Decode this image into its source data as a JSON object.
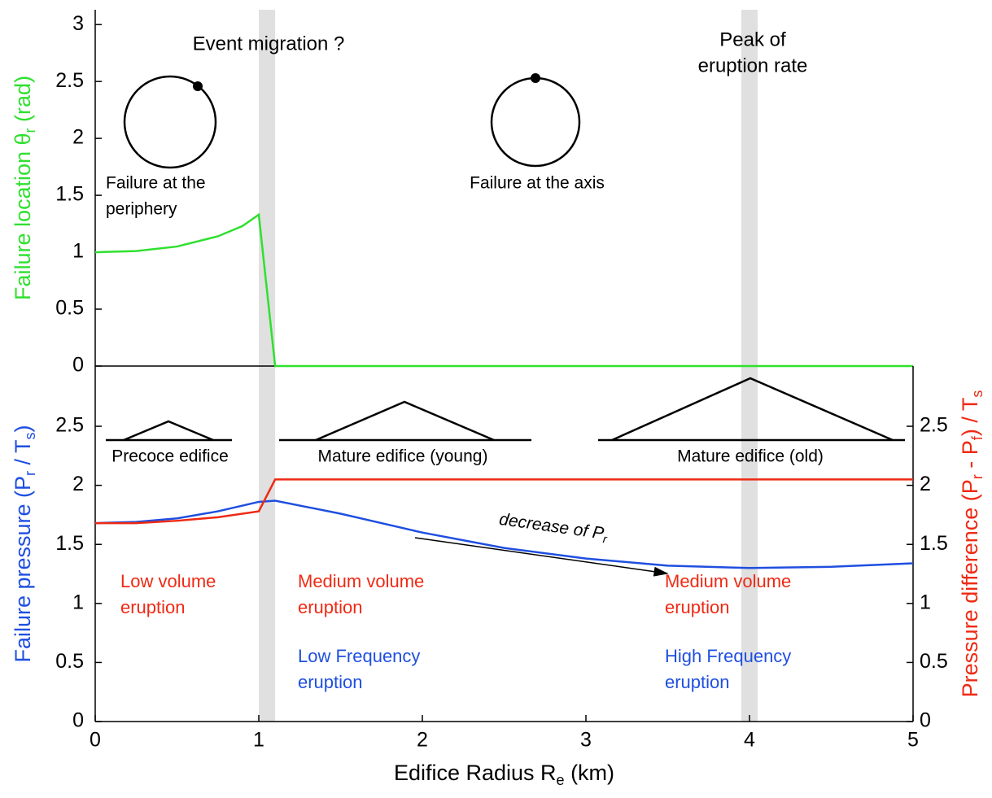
{
  "chart_data": [
    {
      "type": "line",
      "ylabel": [
        "Failure location θ",
        "r",
        " (rad)"
      ],
      "ylabel_color": "#2fe02f",
      "x": [
        0,
        0.25,
        0.5,
        0.75,
        0.9,
        1.0,
        1.1,
        5
      ],
      "series": [
        {
          "name": "Failure location",
          "color": "#2fe02f",
          "values": [
            1.0,
            1.01,
            1.05,
            1.14,
            1.23,
            1.33,
            0,
            0
          ]
        }
      ],
      "xlim": [
        0,
        5
      ],
      "ylim": [
        0,
        3.13
      ],
      "yticks": [
        0,
        0.5,
        1,
        1.5,
        2,
        2.5,
        3
      ],
      "highlight_bands": [
        [
          1.0,
          1.1
        ],
        [
          3.95,
          4.05
        ]
      ],
      "annotations": [
        {
          "lines": [
            "Event migration ?"
          ],
          "color": "#000000"
        },
        {
          "lines": [
            "Peak of",
            "eruption rate"
          ],
          "color": "#000000"
        },
        {
          "lines": [
            "Failure at the",
            "periphery"
          ],
          "color": "#000000"
        },
        {
          "lines": [
            "Failure at the axis"
          ],
          "color": "#000000"
        }
      ]
    },
    {
      "type": "line",
      "xlabel": [
        "Edifice Radius R",
        "e",
        " (km)"
      ],
      "ylabel": [
        "Failure pressure (P",
        "r",
        "  / T",
        "s",
        ")"
      ],
      "ylabel_color": "#1f4fe0",
      "y2label": [
        "Pressure difference (P",
        "r",
        " - P",
        "f",
        ") / T",
        "s"
      ],
      "y2label_color": "#ee2a14",
      "x": [
        0,
        0.25,
        0.5,
        0.75,
        1.0,
        1.1,
        1.5,
        2,
        2.5,
        3,
        3.5,
        4,
        4.5,
        5
      ],
      "series": [
        {
          "name": "Failure pressure",
          "color": "#1f4fe0",
          "values": [
            1.68,
            1.69,
            1.72,
            1.78,
            1.86,
            1.87,
            1.76,
            1.6,
            1.47,
            1.38,
            1.32,
            1.3,
            1.31,
            1.34
          ]
        },
        {
          "name": "Pressure difference",
          "color": "#ee2a14",
          "axis": "y2",
          "values": [
            1.68,
            1.68,
            1.7,
            1.73,
            1.78,
            2.05,
            2.05,
            2.05,
            2.05,
            2.05,
            2.05,
            2.05,
            2.05,
            2.05
          ]
        }
      ],
      "xlim": [
        0,
        5
      ],
      "ylim": [
        0,
        3.01
      ],
      "y2lim": [
        0,
        3.01
      ],
      "xticks": [
        0,
        1,
        2,
        3,
        4,
        5
      ],
      "yticks": [
        0,
        0.5,
        1,
        1.5,
        2,
        2.5
      ],
      "y2ticks": [
        0,
        0.5,
        1,
        1.5,
        2,
        2.5
      ],
      "highlight_bands": [
        [
          1.0,
          1.1
        ],
        [
          3.95,
          4.05
        ]
      ],
      "annotations": [
        {
          "lines": [
            "Precoce edifice"
          ],
          "color": "#000000"
        },
        {
          "lines": [
            "Mature edifice (young)"
          ],
          "color": "#000000"
        },
        {
          "lines": [
            "Mature edifice (old)"
          ],
          "color": "#000000"
        },
        {
          "lines": [
            [
              "decrease of P",
              "r"
            ]
          ],
          "color": "#000000"
        },
        {
          "lines": [
            "Low volume",
            "eruption"
          ],
          "color": "#ee2a14"
        },
        {
          "lines": [
            "Medium volume",
            "eruption"
          ],
          "color": "#ee2a14"
        },
        {
          "lines": [
            "Medium volume",
            "eruption"
          ],
          "color": "#ee2a14"
        },
        {
          "lines": [
            "Low Frequency",
            "eruption"
          ],
          "color": "#1f4fe0"
        },
        {
          "lines": [
            "High Frequency",
            "eruption"
          ],
          "color": "#1f4fe0"
        }
      ]
    }
  ]
}
